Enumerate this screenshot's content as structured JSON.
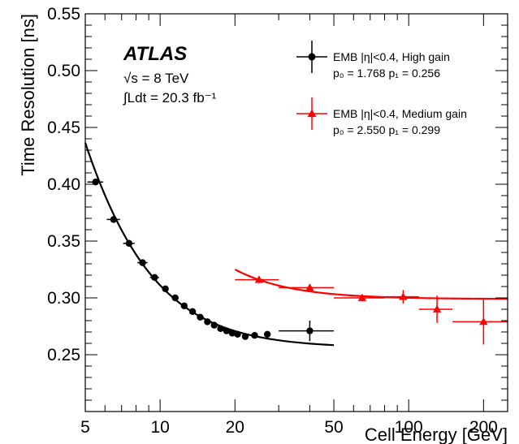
{
  "chart_data": {
    "type": "scatter",
    "xlabel": "Cell Energy [GeV]",
    "ylabel": "Time Resolution [ns]",
    "xscale": "log",
    "xlim": [
      5,
      250
    ],
    "ylim": [
      0.2,
      0.55
    ],
    "x_ticks": [
      5,
      10,
      20,
      50,
      100,
      200
    ],
    "x_tick_labels": [
      "5",
      "10",
      "20",
      "50",
      "100",
      "200"
    ],
    "y_ticks": [
      0.25,
      0.3,
      0.35,
      0.4,
      0.45,
      0.5,
      0.55
    ],
    "y_tick_labels": [
      "0.25",
      "0.30",
      "0.35",
      "0.40",
      "0.45",
      "0.50",
      "0.55"
    ],
    "grid": false,
    "legend_position": "top-right",
    "annotations": {
      "experiment": "ATLAS",
      "energy": "√s = 8 TeV",
      "luminosity": "∫Ldt = 20.3 fb⁻¹"
    },
    "series": [
      {
        "name": "EMB |η|<0.4, High gain",
        "params_text": "p₀ = 1.768  p₁ = 0.256",
        "color": "#000000",
        "marker": "circle",
        "fit": {
          "p0": 1.768,
          "p1": 0.256,
          "x_range": [
            5,
            50
          ]
        },
        "points": [
          {
            "x": 5.5,
            "y": 0.402,
            "xerr": [
              5.1,
              5.9
            ],
            "yerr": 0.003
          },
          {
            "x": 6.5,
            "y": 0.369,
            "xerr": [
              6.1,
              6.9
            ],
            "yerr": 0.003
          },
          {
            "x": 7.5,
            "y": 0.348,
            "xerr": [
              7.1,
              7.9
            ],
            "yerr": 0.003
          },
          {
            "x": 8.5,
            "y": 0.331,
            "xerr": [
              8.1,
              8.9
            ],
            "yerr": 0.003
          },
          {
            "x": 9.5,
            "y": 0.318,
            "xerr": [
              9.1,
              9.9
            ],
            "yerr": 0.003
          },
          {
            "x": 10.5,
            "y": 0.308,
            "xerr": null,
            "yerr": 0.002
          },
          {
            "x": 11.5,
            "y": 0.3,
            "xerr": null,
            "yerr": 0.002
          },
          {
            "x": 12.5,
            "y": 0.293,
            "xerr": null,
            "yerr": 0.002
          },
          {
            "x": 13.5,
            "y": 0.288,
            "xerr": null,
            "yerr": 0.002
          },
          {
            "x": 14.5,
            "y": 0.283,
            "xerr": null,
            "yerr": 0.002
          },
          {
            "x": 15.5,
            "y": 0.279,
            "xerr": null,
            "yerr": 0.002
          },
          {
            "x": 16.5,
            "y": 0.276,
            "xerr": null,
            "yerr": 0.002
          },
          {
            "x": 17.5,
            "y": 0.273,
            "xerr": null,
            "yerr": 0.002
          },
          {
            "x": 18.5,
            "y": 0.271,
            "xerr": null,
            "yerr": 0.002
          },
          {
            "x": 19.5,
            "y": 0.269,
            "xerr": null,
            "yerr": 0.002
          },
          {
            "x": 20.5,
            "y": 0.268,
            "xerr": null,
            "yerr": 0.002
          },
          {
            "x": 22,
            "y": 0.266,
            "xerr": null,
            "yerr": 0.002
          },
          {
            "x": 24,
            "y": 0.267,
            "xerr": null,
            "yerr": 0.002
          },
          {
            "x": 27,
            "y": 0.268,
            "xerr": null,
            "yerr": 0.002
          },
          {
            "x": 40,
            "y": 0.271,
            "xerr": [
              30,
              50
            ],
            "yerr": 0.009
          }
        ]
      },
      {
        "name": "EMB |η|<0.4, Medium gain",
        "params_text": "p₀ = 2.550  p₁ = 0.299",
        "color": "#ff0000",
        "marker": "triangle",
        "fit": {
          "p0": 2.55,
          "p1": 0.299,
          "x_range": [
            20,
            250
          ]
        },
        "points": [
          {
            "x": 25,
            "y": 0.316,
            "xerr": [
              20,
              30
            ],
            "yerr": 0.003
          },
          {
            "x": 40,
            "y": 0.309,
            "xerr": [
              30,
              50
            ],
            "yerr": 0.003
          },
          {
            "x": 65,
            "y": 0.3,
            "xerr": [
              50,
              80
            ],
            "yerr": 0.003
          },
          {
            "x": 95,
            "y": 0.301,
            "xerr": [
              80,
              110
            ],
            "yerr": 0.006
          },
          {
            "x": 130,
            "y": 0.29,
            "xerr": [
              110,
              150
            ],
            "yerr": 0.012
          },
          {
            "x": 200,
            "y": 0.279,
            "xerr": [
              150,
              250
            ],
            "yerr": 0.02
          }
        ]
      }
    ]
  }
}
